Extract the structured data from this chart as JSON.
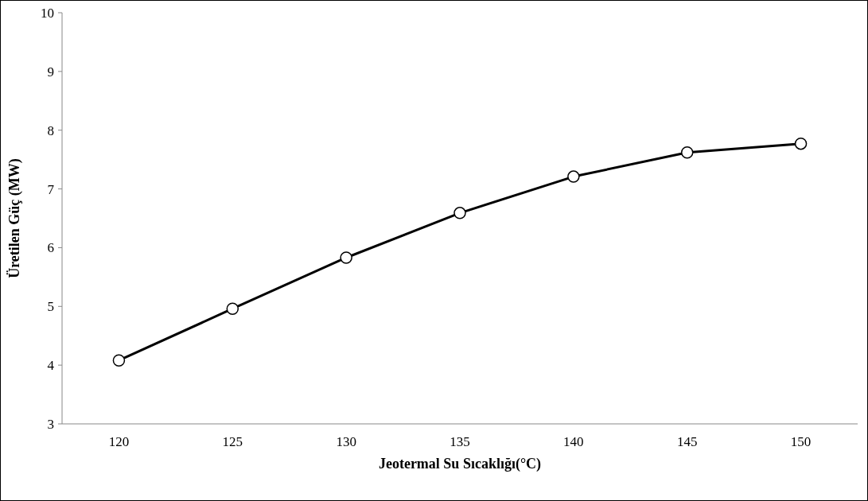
{
  "chart_data": {
    "type": "line",
    "xlabel": "Jeotermal Su Sıcaklığı(°C)",
    "ylabel": "Üretilen Güç (MW)",
    "categories": [
      "120",
      "125",
      "130",
      "135",
      "140",
      "145",
      "150"
    ],
    "series": [
      {
        "color": "#000000",
        "values": [
          4.08,
          4.96,
          5.83,
          6.59,
          7.21,
          7.62,
          7.77
        ]
      }
    ],
    "ylim": [
      3,
      10
    ],
    "yticks": [
      3,
      4,
      5,
      6,
      7,
      8,
      9,
      10
    ],
    "grid": false,
    "marker": "circle",
    "line_style": "solid"
  }
}
